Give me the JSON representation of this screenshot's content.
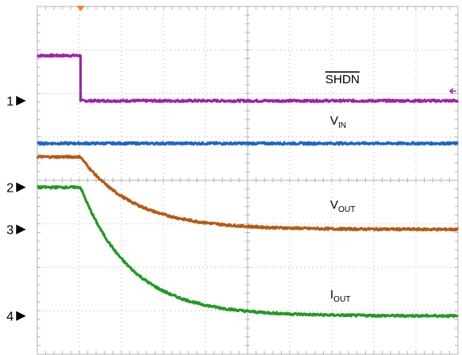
{
  "chart_data": {
    "type": "line",
    "title": "",
    "xlabel": "",
    "ylabel": "",
    "grid": true,
    "divisions": {
      "x": 10,
      "y": 8
    },
    "xlim": [
      0,
      10
    ],
    "ylim": [
      0,
      8
    ],
    "channel_markers": [
      {
        "label": "1",
        "level": 5.83
      },
      {
        "label": "2",
        "level": 3.84
      },
      {
        "label": "3",
        "level": 2.87
      },
      {
        "label": "4",
        "level": 0.88
      }
    ],
    "trigger_time": 1.03,
    "series": [
      {
        "name": "SHDN",
        "color": "#a020a8",
        "high_level": 6.87,
        "low_level": 5.83,
        "step_time": 1.03,
        "decay_tau": 0,
        "label_text": "SHDN",
        "label_subscript": "",
        "overline": true
      },
      {
        "name": "VIN",
        "color": "#1e64c8",
        "high_level": 4.85,
        "low_level": 4.85,
        "step_time": 1.03,
        "decay_tau": 0,
        "label_text": "V",
        "label_subscript": "IN",
        "overline": false
      },
      {
        "name": "VOUT",
        "color": "#b55a14",
        "high_level": 4.54,
        "low_level": 2.87,
        "step_time": 1.03,
        "decay_tau": 1.25,
        "label_text": "V",
        "label_subscript": "OUT",
        "overline": false
      },
      {
        "name": "IOUT",
        "color": "#229922",
        "high_level": 3.84,
        "low_level": 0.88,
        "step_time": 1.03,
        "decay_tau": 1.2,
        "label_text": "I",
        "label_subscript": "OUT",
        "overline": false
      }
    ]
  },
  "colors": {
    "grid": "#b5b5b5",
    "trigger_marker": "#ff7f27",
    "level_arrow": "#a020a8"
  }
}
